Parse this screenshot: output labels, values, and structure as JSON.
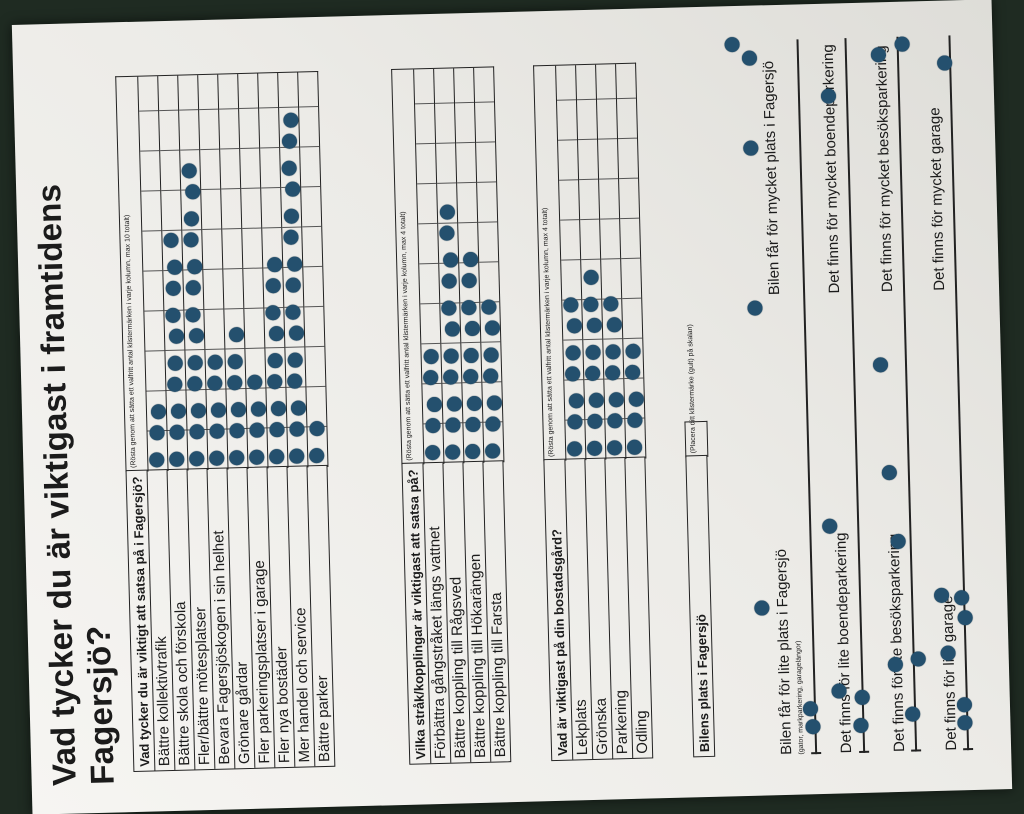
{
  "poster": {
    "title": "Vad tycker du är viktigast i framtidens Fagersjö?",
    "section1": {
      "question": "Vad tycker du är viktigt att satsa på i Fagersjö?",
      "instruction": "(Rösta genom att sätta ett valfritt antal klistermärken i varje kolumn, max 10 totalt)",
      "items": [
        "Bättre kollektivtrafik",
        "Bättre skola och förskola",
        "Fler/bättre mötesplatser",
        "Bevara Fagersjöskogen i sin helhet",
        "Grönare gårdar",
        "Fler parkeringsplatser i garage",
        "Fler nya bostäder",
        "Mer handel och service",
        "Bättre parker"
      ],
      "votes": [
        3,
        10,
        13,
        5,
        6,
        4,
        9,
        15,
        2
      ]
    },
    "section2": {
      "question": "Vilka stråk/kopplingar är viktigast att satsa på?",
      "instruction": "(Rösta genom att sätta ett valfritt antal klistermärken i varje kolumn, max 4 totalt)",
      "items": [
        "Förbättra gångstråket längs vattnet",
        "Bättre koppling till Rågsved",
        "Bättre koppling till Hökarängen",
        "Bättre koppling till Farsta"
      ],
      "votes": [
        5,
        11,
        9,
        7
      ]
    },
    "section3": {
      "question": "Vad är viktigast på din bostadsgård?",
      "instruction": "(Rösta genom att sätta ett valfritt antal klistermärken i varje kolumn, max 4 totalt)",
      "items": [
        "Lekplats",
        "Grönska",
        "Parkering",
        "Odling"
      ],
      "votes": [
        7,
        8,
        7,
        5
      ]
    },
    "section4": {
      "question": "Bilens plats i Fagersjö",
      "instruction": "(Placera ditt klistermärke (gult) på skalan)",
      "scales": [
        {
          "left": "Bilen får för lite plats i Fagersjö",
          "note": "(gator, markparkering, garagelängor)",
          "right": "Bilen får för mycket plats i Fagersjö"
        },
        {
          "left": "Det finns för lite boendeparkering",
          "note": "",
          "right": "Det finns för mycket boendeparkering"
        },
        {
          "left": "Det finns för lite besöksparkering",
          "note": "",
          "right": "Det finns för mycket besöksparkering"
        },
        {
          "left": "Det finns för lite garage",
          "note": "",
          "right": "Det finns för mycket garage"
        }
      ]
    },
    "sticker_color": "#24506e"
  }
}
